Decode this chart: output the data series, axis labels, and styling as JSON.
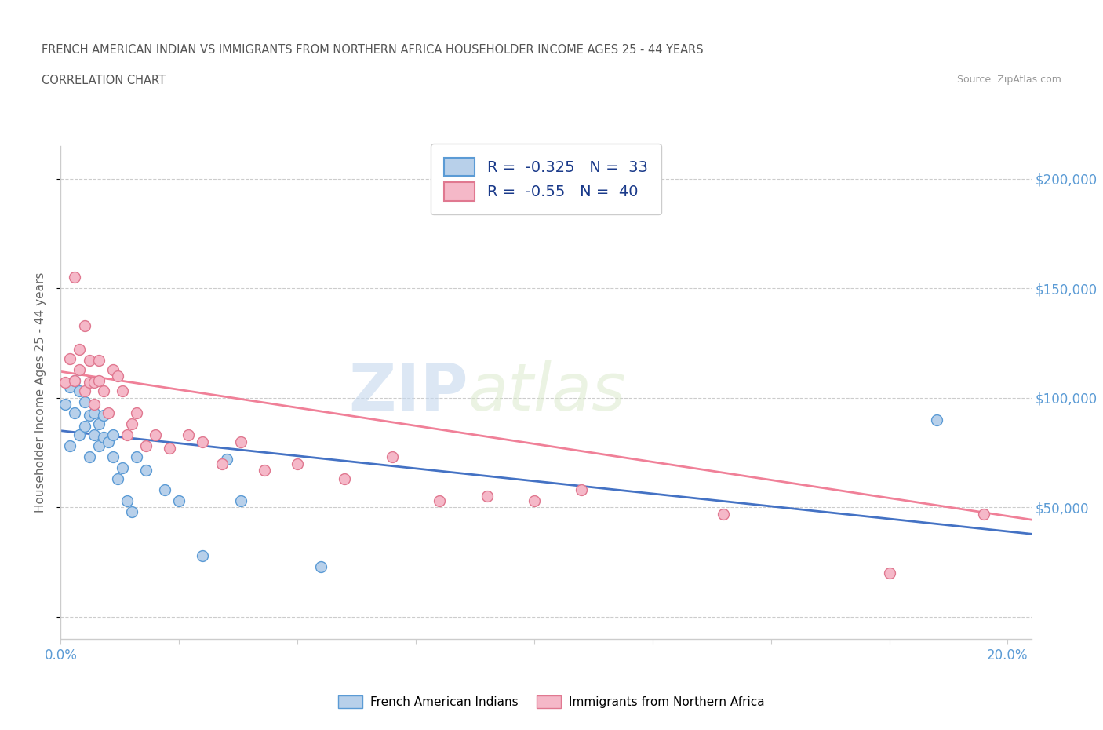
{
  "title_line1": "FRENCH AMERICAN INDIAN VS IMMIGRANTS FROM NORTHERN AFRICA HOUSEHOLDER INCOME AGES 25 - 44 YEARS",
  "title_line2": "CORRELATION CHART",
  "source": "Source: ZipAtlas.com",
  "ylabel": "Householder Income Ages 25 - 44 years",
  "xlim": [
    0.0,
    0.205
  ],
  "ylim": [
    -10000,
    215000
  ],
  "ytick_vals": [
    0,
    50000,
    100000,
    150000,
    200000
  ],
  "ytick_labels": [
    "",
    "$50,000",
    "$100,000",
    "$150,000",
    "$200,000"
  ],
  "xtick_vals": [
    0.0,
    0.025,
    0.05,
    0.075,
    0.1,
    0.125,
    0.15,
    0.175,
    0.2
  ],
  "xtick_labels": [
    "0.0%",
    "",
    "",
    "",
    "",
    "",
    "",
    "",
    "20.0%"
  ],
  "blue_R": -0.325,
  "blue_N": 33,
  "pink_R": -0.55,
  "pink_N": 40,
  "blue_face": "#b8d0ea",
  "blue_edge": "#5b9bd5",
  "pink_face": "#f5b8c8",
  "pink_edge": "#e07890",
  "blue_line": "#4472c4",
  "pink_line": "#f08098",
  "legend_label_blue": "French American Indians",
  "legend_label_pink": "Immigrants from Northern Africa",
  "watermark_zip": "ZIP",
  "watermark_atlas": "atlas",
  "blue_scatter_x": [
    0.001,
    0.002,
    0.002,
    0.003,
    0.003,
    0.004,
    0.004,
    0.005,
    0.005,
    0.006,
    0.006,
    0.007,
    0.007,
    0.008,
    0.008,
    0.009,
    0.009,
    0.01,
    0.011,
    0.011,
    0.012,
    0.013,
    0.014,
    0.015,
    0.016,
    0.018,
    0.022,
    0.025,
    0.03,
    0.035,
    0.038,
    0.055,
    0.185
  ],
  "blue_scatter_y": [
    97000,
    105000,
    78000,
    93000,
    108000,
    83000,
    103000,
    87000,
    98000,
    73000,
    92000,
    83000,
    93000,
    88000,
    78000,
    82000,
    92000,
    80000,
    73000,
    83000,
    63000,
    68000,
    53000,
    48000,
    73000,
    67000,
    58000,
    53000,
    28000,
    72000,
    53000,
    23000,
    90000
  ],
  "pink_scatter_x": [
    0.001,
    0.002,
    0.003,
    0.003,
    0.004,
    0.004,
    0.005,
    0.005,
    0.006,
    0.006,
    0.007,
    0.007,
    0.008,
    0.008,
    0.009,
    0.01,
    0.011,
    0.012,
    0.013,
    0.014,
    0.015,
    0.016,
    0.018,
    0.02,
    0.023,
    0.027,
    0.03,
    0.034,
    0.038,
    0.043,
    0.05,
    0.06,
    0.07,
    0.08,
    0.09,
    0.1,
    0.11,
    0.14,
    0.175,
    0.195
  ],
  "pink_scatter_y": [
    107000,
    118000,
    108000,
    155000,
    122000,
    113000,
    133000,
    103000,
    117000,
    107000,
    97000,
    107000,
    117000,
    108000,
    103000,
    93000,
    113000,
    110000,
    103000,
    83000,
    88000,
    93000,
    78000,
    83000,
    77000,
    83000,
    80000,
    70000,
    80000,
    67000,
    70000,
    63000,
    73000,
    53000,
    55000,
    53000,
    58000,
    47000,
    20000,
    47000
  ]
}
